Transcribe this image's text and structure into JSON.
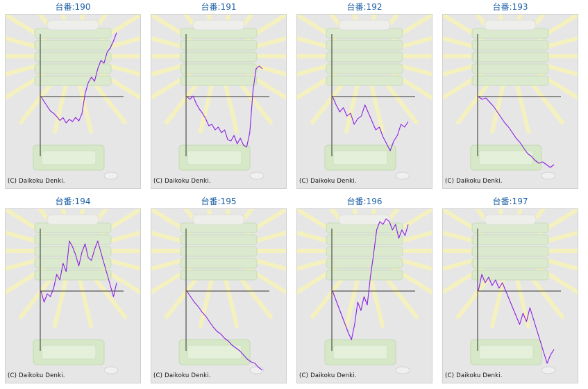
{
  "copyright": "(C) Daikoku Denki.",
  "colors": {
    "line": "#8b1fe0",
    "axis": "#333333",
    "title": "#1a5fa6",
    "panel_bg": "#e6e6e6"
  },
  "chart_data": [
    {
      "type": "line",
      "title": "台番:190",
      "values": [
        0.0,
        -0.18,
        -0.35,
        -0.52,
        -0.6,
        -0.72,
        -0.86,
        -0.76,
        -0.95,
        -0.82,
        -0.9,
        -0.75,
        -0.88,
        -0.62,
        0.1,
        0.5,
        0.7,
        0.55,
        1.0,
        1.3,
        1.2,
        1.6,
        1.75,
        2.0,
        2.3
      ]
    },
    {
      "type": "line",
      "title": "台番:191",
      "values": [
        0.0,
        -0.1,
        0.02,
        -0.25,
        -0.45,
        -0.6,
        -0.8,
        -1.05,
        -1.0,
        -1.2,
        -1.1,
        -1.3,
        -1.2,
        -1.55,
        -1.6,
        -1.4,
        -1.7,
        -1.5,
        -1.75,
        -1.82,
        -1.3,
        0.2,
        1.0,
        1.1,
        1.0
      ]
    },
    {
      "type": "line",
      "title": "台番:192",
      "values": [
        0.0,
        -0.3,
        -0.55,
        -0.4,
        -0.7,
        -0.6,
        -1.0,
        -0.8,
        -0.7,
        -0.3,
        -0.6,
        -0.9,
        -1.2,
        -1.1,
        -1.45,
        -1.7,
        -1.95,
        -1.6,
        -1.4,
        -1.0,
        -1.1,
        -0.9
      ]
    },
    {
      "type": "line",
      "title": "台番:193",
      "values": [
        0.0,
        -0.1,
        -0.05,
        -0.2,
        -0.35,
        -0.55,
        -0.75,
        -0.95,
        -1.1,
        -1.3,
        -1.5,
        -1.65,
        -1.85,
        -2.05,
        -2.15,
        -2.3,
        -2.4,
        -2.35,
        -2.45,
        -2.55,
        -2.45
      ]
    },
    {
      "type": "line",
      "title": "台番:194",
      "values": [
        0.0,
        -0.4,
        -0.1,
        -0.2,
        0.1,
        0.6,
        0.4,
        1.0,
        0.7,
        1.8,
        1.6,
        1.3,
        0.9,
        1.4,
        1.7,
        1.2,
        1.1,
        1.5,
        1.8,
        1.4,
        1.0,
        0.6,
        0.2,
        -0.2,
        0.3
      ]
    },
    {
      "type": "line",
      "title": "台番:195",
      "values": [
        0.0,
        -0.2,
        -0.4,
        -0.55,
        -0.75,
        -0.9,
        -1.1,
        -1.3,
        -1.45,
        -1.55,
        -1.7,
        -1.8,
        -1.95,
        -2.05,
        -2.15,
        -2.3,
        -2.45,
        -2.55,
        -2.6,
        -2.75,
        -2.85
      ]
    },
    {
      "type": "line",
      "title": "台番:196",
      "values": [
        0.0,
        -0.3,
        -0.6,
        -0.9,
        -1.2,
        -1.5,
        -1.75,
        -1.2,
        -0.4,
        -0.7,
        -0.2,
        -0.5,
        0.5,
        1.3,
        2.2,
        2.5,
        2.4,
        2.6,
        2.5,
        2.2,
        2.4,
        1.9,
        2.2,
        2.0,
        2.4
      ]
    },
    {
      "type": "line",
      "title": "台番:197",
      "values": [
        0.0,
        0.6,
        0.3,
        0.5,
        0.2,
        0.4,
        0.1,
        0.3,
        0.0,
        -0.3,
        -0.6,
        -0.9,
        -1.2,
        -0.8,
        -1.1,
        -0.6,
        -1.0,
        -1.4,
        -1.8,
        -2.2,
        -2.6,
        -2.3,
        -2.1
      ]
    }
  ]
}
